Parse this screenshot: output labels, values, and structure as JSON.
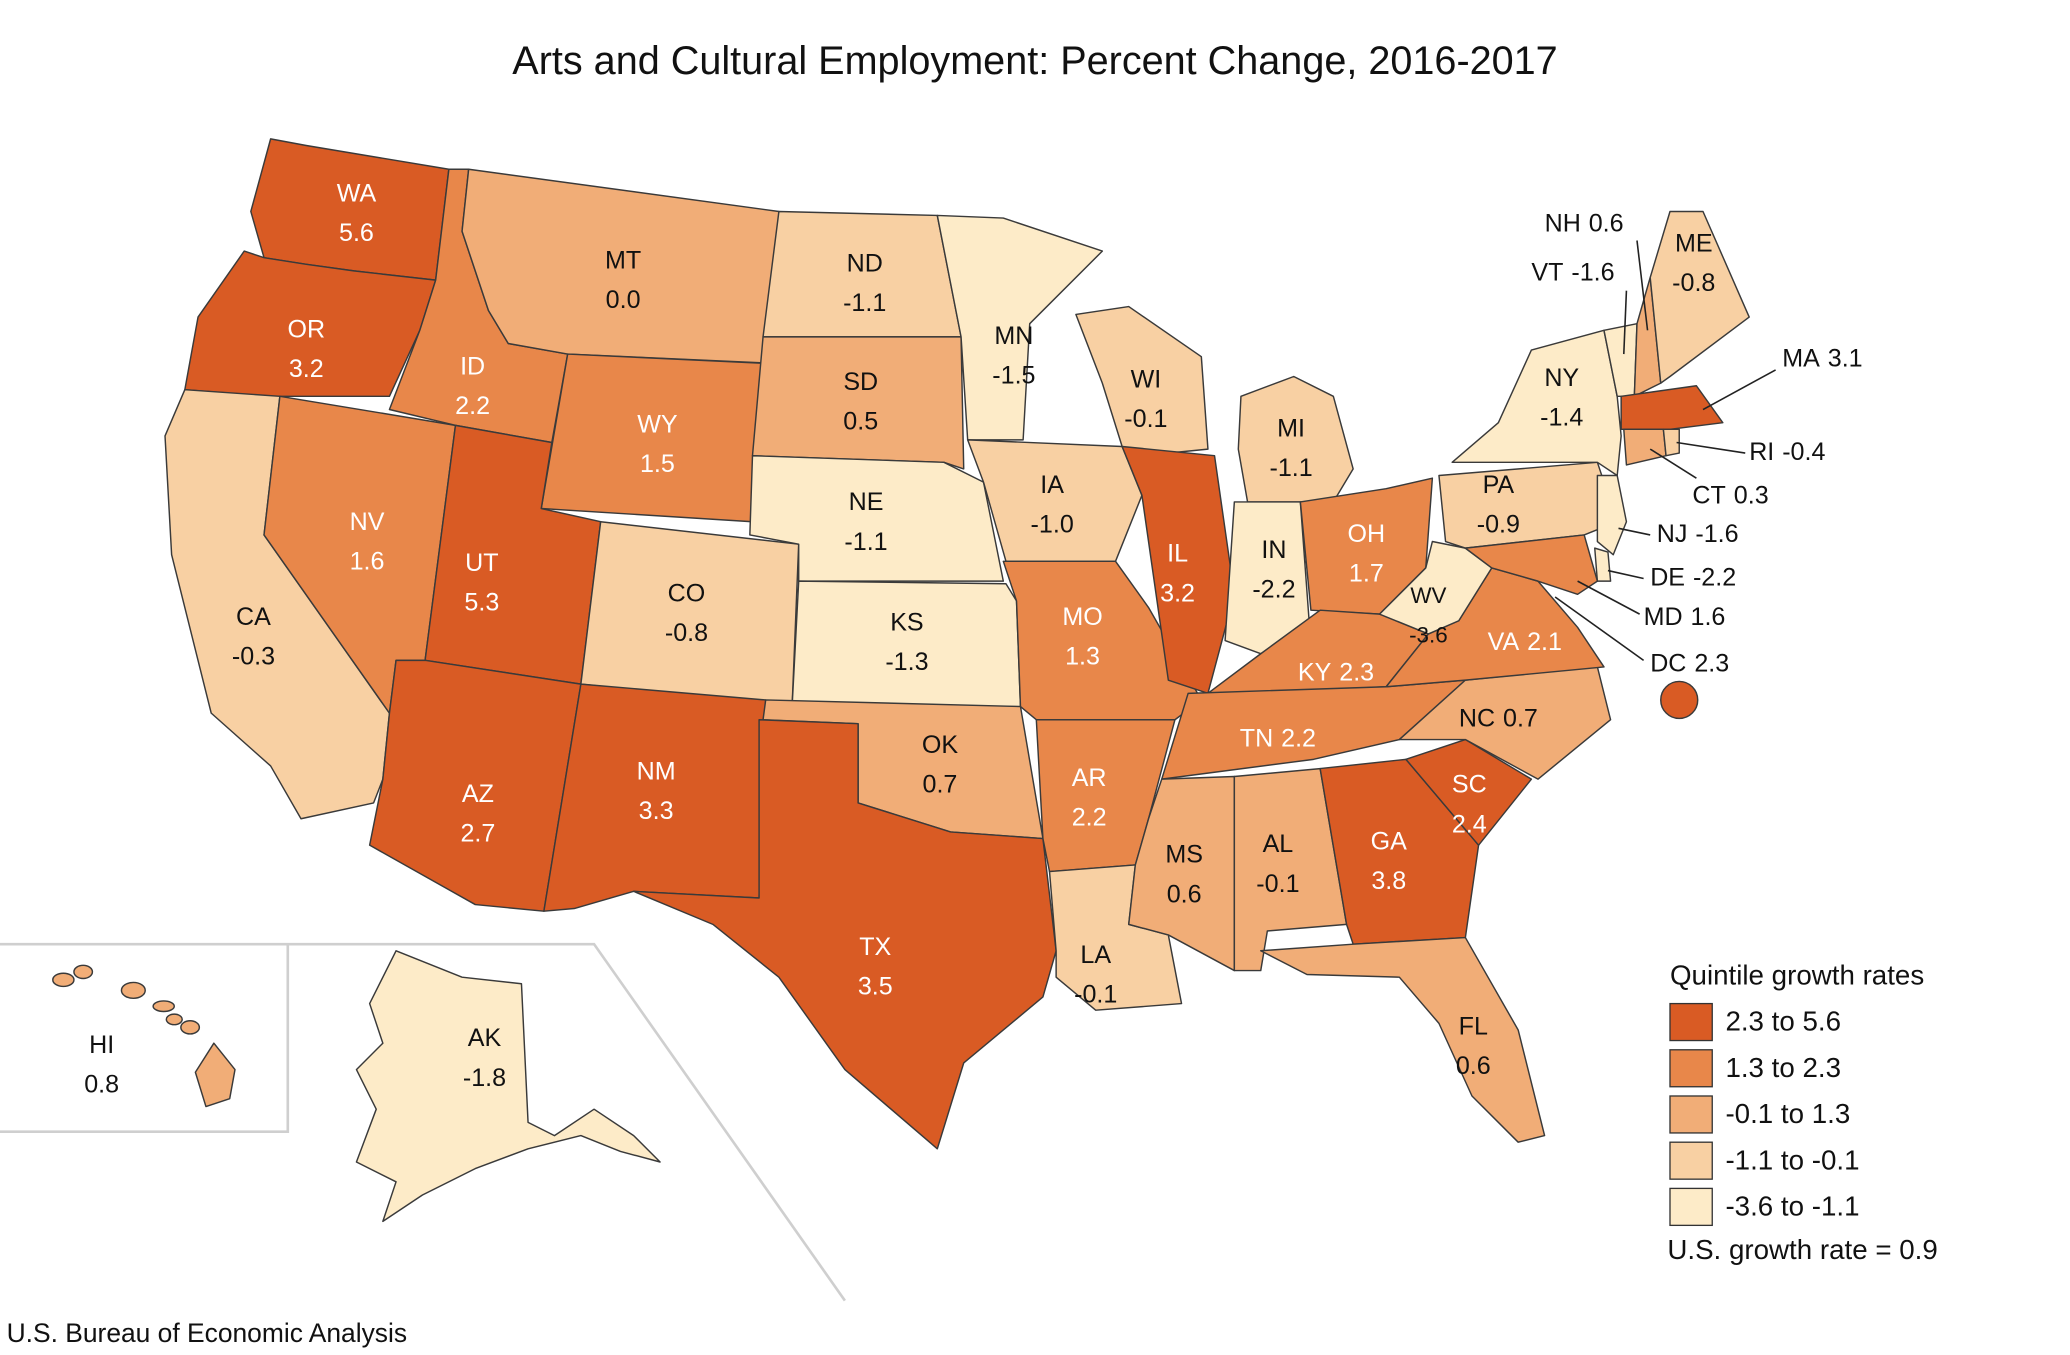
{
  "chart_data": {
    "type": "choropleth",
    "title": "Arts and Cultural Employment: Percent Change, 2016-2017",
    "source": "U.S. Bureau of Economic Analysis",
    "categories": [
      "WA",
      "OR",
      "CA",
      "NV",
      "ID",
      "MT",
      "WY",
      "UT",
      "CO",
      "AZ",
      "NM",
      "ND",
      "SD",
      "NE",
      "KS",
      "OK",
      "TX",
      "MN",
      "IA",
      "MO",
      "AR",
      "LA",
      "WI",
      "IL",
      "MI",
      "IN",
      "OH",
      "KY",
      "TN",
      "MS",
      "AL",
      "GA",
      "FL",
      "SC",
      "NC",
      "VA",
      "WV",
      "PA",
      "NY",
      "VT",
      "NH",
      "ME",
      "MA",
      "CT",
      "RI",
      "NJ",
      "DE",
      "MD",
      "DC",
      "HI",
      "AK"
    ],
    "values": [
      5.6,
      3.2,
      -0.3,
      1.6,
      2.2,
      0,
      1.5,
      5.3,
      -0.8,
      2.7,
      3.3,
      -1.1,
      0.5,
      -1.1,
      -1.3,
      0.7,
      3.5,
      -1.5,
      -1.0,
      1.3,
      2.2,
      -0.1,
      -0.1,
      3.2,
      -1.1,
      -2.2,
      1.7,
      2.3,
      2.2,
      0.6,
      -0.1,
      3.8,
      0.6,
      2.4,
      0.7,
      2.1,
      -3.6,
      -0.9,
      -1.4,
      -1.6,
      0.6,
      -0.8,
      3.1,
      0.3,
      -0.4,
      -1.6,
      -2.2,
      1.6,
      2.3,
      0.8,
      -1.8
    ],
    "value_labels": [
      "5.6",
      "3.2",
      "-0.3",
      "1.6",
      "2.2",
      "0.0",
      "1.5",
      "5.3",
      "-0.8",
      "2.7",
      "3.3",
      "-1.1",
      "0.5",
      "-1.1",
      "-1.3",
      "0.7",
      "3.5",
      "-1.5",
      "-1.0",
      "1.3",
      "2.2",
      "-0.1",
      "-0.1",
      "3.2",
      "-1.1",
      "-2.2",
      "1.7",
      "2.3",
      "2.2",
      "0.6",
      "-0.1",
      "3.8",
      "0.6",
      "2.4",
      "0.7",
      "2.1",
      "-3.6",
      "-0.9",
      "-1.4",
      "-1.6",
      "0.6",
      "-0.8",
      "3.1",
      "0.3",
      "-0.4",
      "-1.6",
      "-2.2",
      "1.6",
      "2.3",
      "0.8",
      "-1.8"
    ],
    "colors": [
      "#d95b24",
      "#d95b24",
      "#f8d0a3",
      "#e8874a",
      "#e8874a",
      "#f1ad77",
      "#e8874a",
      "#d95b24",
      "#f8d0a3",
      "#d95b24",
      "#d95b24",
      "#f8d0a3",
      "#f1ad77",
      "#fdebc8",
      "#fdebc8",
      "#f1ad77",
      "#d95b24",
      "#fdebc8",
      "#f8d0a3",
      "#e8874a",
      "#e8874a",
      "#f8d0a3",
      "#f8d0a3",
      "#d95b24",
      "#f8d0a3",
      "#fdebc8",
      "#e8874a",
      "#e8874a",
      "#e8874a",
      "#f1ad77",
      "#f1ad77",
      "#d95b24",
      "#f1ad77",
      "#d95b24",
      "#f1ad77",
      "#e8874a",
      "#fdebc8",
      "#f8d0a3",
      "#fdebc8",
      "#fdebc8",
      "#f1ad77",
      "#f8d0a3",
      "#d95b24",
      "#f1ad77",
      "#f8d0a3",
      "#fdebc8",
      "#fdebc8",
      "#e8874a",
      "#d95b24",
      "#f1ad77",
      "#fdebc8"
    ],
    "legend": {
      "title": "Quintile growth rates",
      "items": [
        {
          "label": "2.3 to 5.6",
          "color": "#d95b24"
        },
        {
          "label": "1.3 to 2.3",
          "color": "#e8874a"
        },
        {
          "label": "-0.1 to 1.3",
          "color": "#f1ad77"
        },
        {
          "label": "-1.1 to -0.1",
          "color": "#f8d0a3"
        },
        {
          "label": "-3.6 to -1.1",
          "color": "#fdebc8"
        }
      ],
      "note": "U.S. growth rate = 0.9"
    }
  }
}
